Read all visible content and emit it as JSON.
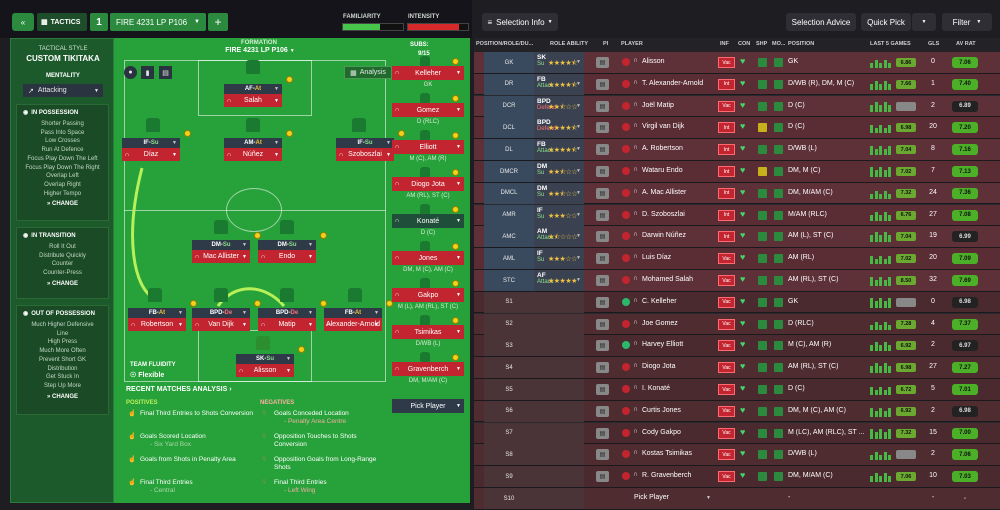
{
  "tactics": {
    "tab_label": "TACTICS",
    "slot_number": "1",
    "tactic_name": "FIRE  4231 LP P106",
    "add_label": "+",
    "familiarity_label": "FAMILIARITY",
    "intensity_label": "INTENSITY",
    "familiarity_level": 0.62,
    "intensity_level": 0.85
  },
  "left_panel": {
    "style_heading": "TACTICAL STYLE",
    "style_value": "CUSTOM TIKITAKA",
    "mentality_heading": "MENTALITY",
    "mentality_value": "Attacking",
    "in_possession": {
      "title": "IN POSSESSION",
      "items": [
        "Shorter Passing",
        "Pass Into Space",
        "Low Crosses",
        "Run At Defence",
        "Focus Play Down The Left",
        "Focus Play Down The Right",
        "Overlap Left",
        "Overlap Right",
        "Higher Tempo"
      ],
      "change": "CHANGE"
    },
    "in_transition": {
      "title": "IN TRANSITION",
      "items": [
        "Roll It Out",
        "Distribute Quickly",
        "Counter",
        "Counter-Press"
      ],
      "change": "CHANGE"
    },
    "out_of_possession": {
      "title": "OUT OF POSSESSION",
      "items": [
        "Much Higher Defensive",
        "Line",
        "High Press",
        "Much More Often",
        "Prevent Short GK",
        "Distribution",
        "Get Stuck In",
        "Step Up More"
      ],
      "change": "CHANGE"
    }
  },
  "pitch": {
    "formation_label": "FORMATION",
    "formation_name": "FIRE  4231 LP P106",
    "subs_label": "SUBS:",
    "subs_count": "9/15",
    "analysis_label": "Analysis",
    "fluidity_label": "TEAM FLUIDITY",
    "fluidity_value": "Flexible",
    "players": [
      {
        "role": "AF",
        "duty": "At",
        "name": "Salah"
      },
      {
        "role": "IF",
        "duty": "Su",
        "name": "Díaz"
      },
      {
        "role": "AM",
        "duty": "At",
        "name": "Núñez"
      },
      {
        "role": "IF",
        "duty": "Su",
        "name": "Szoboszlai"
      },
      {
        "role": "DM",
        "duty": "Su",
        "name": "Mac Allister"
      },
      {
        "role": "DM",
        "duty": "Su",
        "name": "Endo"
      },
      {
        "role": "FB",
        "duty": "At",
        "name": "Robertson"
      },
      {
        "role": "BPD",
        "duty": "De",
        "name": "Van Dijk"
      },
      {
        "role": "BPD",
        "duty": "De",
        "name": "Matip"
      },
      {
        "role": "FB",
        "duty": "At",
        "name": "Alexander-Arnold"
      },
      {
        "role": "SK",
        "duty": "Su",
        "name": "Alisson"
      }
    ],
    "subs": [
      {
        "name": "Kelleher",
        "pos": "GK"
      },
      {
        "name": "Gomez",
        "pos": "D (RLC)"
      },
      {
        "name": "Elliott",
        "pos": "M (C), AM (R)"
      },
      {
        "name": "Diogo Jota",
        "pos": "AM (RL), ST (C)"
      },
      {
        "name": "Konaté",
        "pos": "D (C)"
      },
      {
        "name": "Jones",
        "pos": "DM, M (C), AM (C)"
      },
      {
        "name": "Gakpo",
        "pos": "M (L), AM (RL), ST (C)"
      },
      {
        "name": "Tsimikas",
        "pos": "D/WB (L)"
      },
      {
        "name": "Gravenberch",
        "pos": "DM, M/AM (C)"
      },
      {
        "name": "Pick Player",
        "pos": ""
      }
    ]
  },
  "analysis": {
    "heading": "RECENT MATCHES ANALYSIS",
    "positives_label": "POSITIVES",
    "negatives_label": "NEGATIVES",
    "positives": [
      {
        "title": "Final Third Entries to Shots Conversion",
        "sub": ""
      },
      {
        "title": "Goals Scored Location",
        "sub": "- Six Yard Box"
      },
      {
        "title": "Goals from Shots in Penalty Area",
        "sub": ""
      },
      {
        "title": "Final Third Entries",
        "sub": "- Central"
      }
    ],
    "negatives": [
      {
        "title": "Goals Conceded Location",
        "sub": "- Penalty Area Centre"
      },
      {
        "title": "Opposition Touches to Shots Conversion",
        "sub": ""
      },
      {
        "title": "Opposition Goals from Long-Range Shots",
        "sub": ""
      },
      {
        "title": "Final Third Entries",
        "sub": "- Left Wing"
      }
    ]
  },
  "right_panel": {
    "selection_info": "Selection Info",
    "selection_advice": "Selection Advice",
    "quick_pick": "Quick Pick",
    "filter": "Filter",
    "headers": {
      "position": "POSITION/ROLE/DU...",
      "role_ability": "ROLE ABILITY",
      "pi": "PI",
      "player": "PLAYER",
      "inf": "INF",
      "con": "CON",
      "shp": "SHP",
      "mo": "MO...",
      "position2": "POSITION",
      "last5": "LAST 5 GAMES",
      "gls": "GLS",
      "avrat": "AV RAT"
    },
    "rows": [
      {
        "slot": "GK",
        "role": "SK",
        "duty": "Su",
        "stars": 4.5,
        "player": "Alisson",
        "inf": "Vac",
        "position": "GK",
        "last": "6.86",
        "gls": "0",
        "avrat": "7.06"
      },
      {
        "slot": "DR",
        "role": "FB",
        "duty": "Attack",
        "stars": 4.5,
        "player": "T. Alexander-Arnold",
        "inf": "Int",
        "position": "D/WB (R), DM, M (C)",
        "last": "7.66",
        "gls": "1",
        "avrat": "7.40"
      },
      {
        "slot": "DCR",
        "role": "BPD",
        "duty": "Defend",
        "stars": 2.5,
        "player": "Joël Matip",
        "inf": "Vac",
        "position": "D (C)",
        "last": "",
        "gls": "2",
        "avrat": "6.89"
      },
      {
        "slot": "DCL",
        "role": "BPD",
        "duty": "Defend",
        "stars": 4.5,
        "player": "Virgil van Dijk",
        "inf": "Int",
        "position": "D (C)",
        "last": "6.98",
        "gls": "20",
        "avrat": "7.20"
      },
      {
        "slot": "DL",
        "role": "FB",
        "duty": "Attack",
        "stars": 4.5,
        "player": "A. Robertson",
        "inf": "Int",
        "position": "D/WB (L)",
        "last": "7.04",
        "gls": "8",
        "avrat": "7.16"
      },
      {
        "slot": "DMCR",
        "role": "DM",
        "duty": "Su",
        "stars": 2.5,
        "player": "Wataru Endo",
        "inf": "Int",
        "position": "DM, M (C)",
        "last": "7.02",
        "gls": "7",
        "avrat": "7.13"
      },
      {
        "slot": "DMCL",
        "role": "DM",
        "duty": "Su",
        "stars": 2.5,
        "player": "A. Mac Allister",
        "inf": "Int",
        "position": "DM, M/AM (C)",
        "last": "7.32",
        "gls": "24",
        "avrat": "7.36"
      },
      {
        "slot": "AMR",
        "role": "IF",
        "duty": "Su",
        "stars": 3,
        "player": "D. Szoboszlai",
        "inf": "Int",
        "position": "M/AM (RLC)",
        "last": "6.76",
        "gls": "27",
        "avrat": "7.08"
      },
      {
        "slot": "AMC",
        "role": "AM",
        "duty": "Attack",
        "stars": 1.5,
        "player": "Darwin Núñez",
        "inf": "Int",
        "position": "AM (L), ST (C)",
        "last": "7.04",
        "gls": "19",
        "avrat": "6.99"
      },
      {
        "slot": "AML",
        "role": "IF",
        "duty": "Su",
        "stars": 3,
        "player": "Luis Díaz",
        "inf": "Vac",
        "position": "AM (RL)",
        "last": "7.02",
        "gls": "20",
        "avrat": "7.09"
      },
      {
        "slot": "STC",
        "role": "AF",
        "duty": "Attack",
        "stars": 5,
        "player": "Mohamed Salah",
        "inf": "Vac",
        "position": "AM (RL), ST (C)",
        "last": "8.50",
        "gls": "32",
        "avrat": "7.69"
      },
      {
        "slot": "S1",
        "role": "",
        "duty": "",
        "stars": 0,
        "player": "C. Kelleher",
        "inf": "Vac",
        "position": "GK",
        "last": "",
        "gls": "0",
        "avrat": "6.98"
      },
      {
        "slot": "S2",
        "role": "",
        "duty": "",
        "stars": 0,
        "player": "Joe Gomez",
        "inf": "Vac",
        "position": "D (RLC)",
        "last": "7.28",
        "gls": "4",
        "avrat": "7.37"
      },
      {
        "slot": "S3",
        "role": "",
        "duty": "",
        "stars": 0,
        "player": "Harvey Elliott",
        "inf": "Vac",
        "position": "M (C), AM (R)",
        "last": "6.92",
        "gls": "2",
        "avrat": "6.97"
      },
      {
        "slot": "S4",
        "role": "",
        "duty": "",
        "stars": 0,
        "player": "Diogo Jota",
        "inf": "Vac",
        "position": "AM (RL), ST (C)",
        "last": "6.98",
        "gls": "27",
        "avrat": "7.27"
      },
      {
        "slot": "S5",
        "role": "",
        "duty": "",
        "stars": 0,
        "player": "I. Konaté",
        "inf": "Vac",
        "position": "D (C)",
        "last": "6.72",
        "gls": "5",
        "avrat": "7.01"
      },
      {
        "slot": "S6",
        "role": "",
        "duty": "",
        "stars": 0,
        "player": "Curtis Jones",
        "inf": "Vac",
        "position": "DM, M (C), AM (C)",
        "last": "6.92",
        "gls": "2",
        "avrat": "6.98"
      },
      {
        "slot": "S7",
        "role": "",
        "duty": "",
        "stars": 0,
        "player": "Cody Gakpo",
        "inf": "Vac",
        "position": "M (LC), AM (RLC), ST ...",
        "last": "7.32",
        "gls": "15",
        "avrat": "7.00"
      },
      {
        "slot": "S8",
        "role": "",
        "duty": "",
        "stars": 0,
        "player": "Kostas Tsimikas",
        "inf": "Vac",
        "position": "D/WB (L)",
        "last": "",
        "gls": "2",
        "avrat": "7.06"
      },
      {
        "slot": "S9",
        "role": "",
        "duty": "",
        "stars": 0,
        "player": "R. Gravenberch",
        "inf": "Vac",
        "position": "DM, M/AM (C)",
        "last": "7.06",
        "gls": "10",
        "avrat": "7.03"
      },
      {
        "slot": "S10",
        "role": "",
        "duty": "",
        "stars": 0,
        "player": "Pick Player",
        "inf": "",
        "position": "-",
        "last": "",
        "gls": "-",
        "avrat": "-"
      }
    ]
  }
}
